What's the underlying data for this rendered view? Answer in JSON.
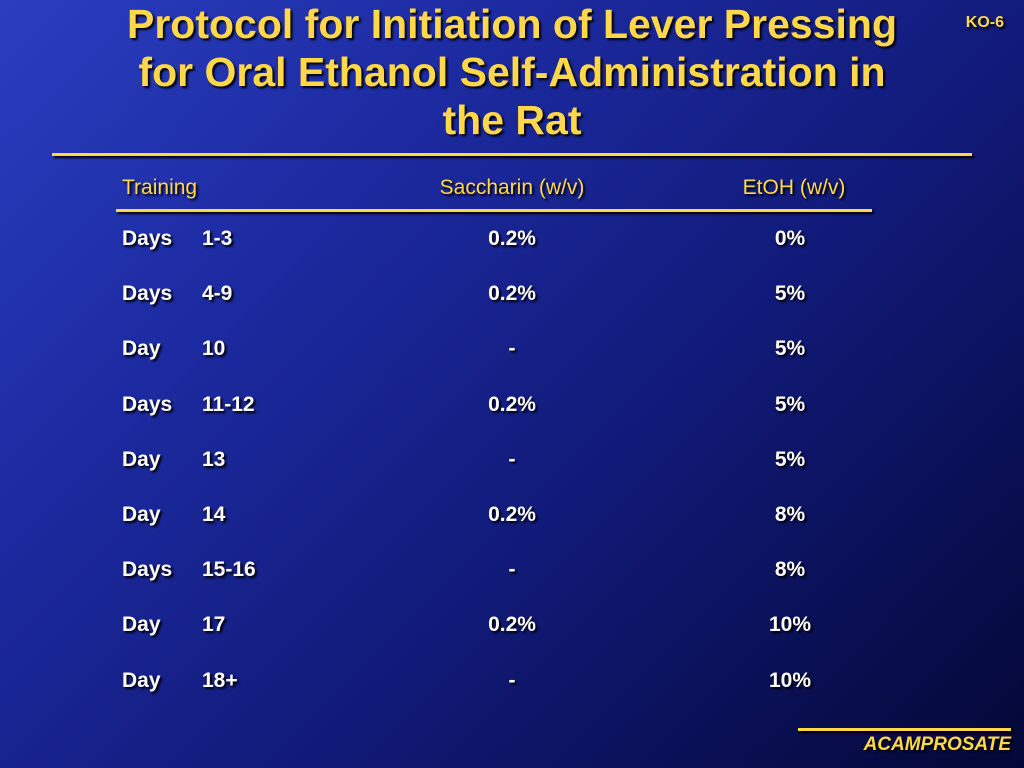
{
  "slide": {
    "title": "Protocol for Initiation of Lever Pressing\nfor Oral Ethanol Self-Administration in\nthe Rat",
    "code": "KO-6",
    "footer": "ACAMPROSATE"
  },
  "table": {
    "headers": {
      "training": "Training",
      "saccharin": "Saccharin (w/v)",
      "etoh": "EtOH (w/v)"
    },
    "rows": [
      {
        "unit": "Days",
        "days": "1-3",
        "saccharin": "0.2%",
        "etoh": "0%"
      },
      {
        "unit": "Days",
        "days": "4-9",
        "saccharin": "0.2%",
        "etoh": "5%"
      },
      {
        "unit": "Day",
        "days": "10",
        "saccharin": "-",
        "etoh": "5%"
      },
      {
        "unit": "Days",
        "days": "11-12",
        "saccharin": "0.2%",
        "etoh": "5%"
      },
      {
        "unit": "Day",
        "days": "13",
        "saccharin": "-",
        "etoh": "5%"
      },
      {
        "unit": "Day",
        "days": "14",
        "saccharin": "0.2%",
        "etoh": "8%"
      },
      {
        "unit": "Days",
        "days": "15-16",
        "saccharin": "-",
        "etoh": "8%"
      },
      {
        "unit": "Day",
        "days": "17",
        "saccharin": "0.2%",
        "etoh": "10%"
      },
      {
        "unit": "Day",
        "days": "18+",
        "saccharin": "-",
        "etoh": "10%"
      }
    ]
  },
  "colors": {
    "accent": "#ffd84a",
    "text": "#ffffff",
    "background_top": "#2a3ec0",
    "background_bottom": "#040736"
  }
}
